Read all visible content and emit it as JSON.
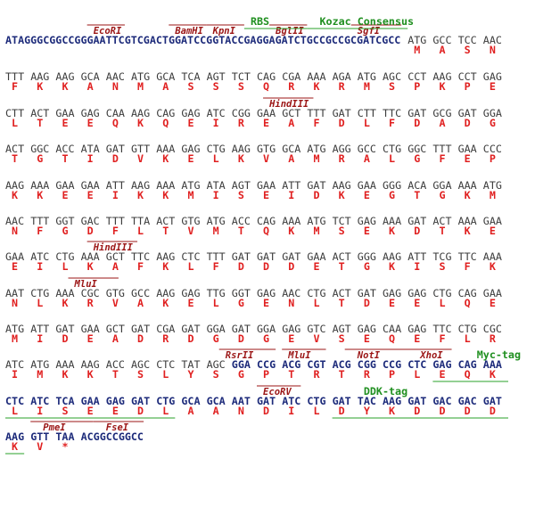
{
  "rows": [
    {
      "lead": "ATAGGGCGGCCGGGAATTCGTCGACTGGATCCGGTACCGAGGAGATCTGCCGCCGCGATCGCC",
      "codons": [
        "ATG",
        "GCC",
        "TCC",
        "AAC"
      ],
      "protein": [
        "M",
        "A",
        "S",
        "N"
      ],
      "sites": [
        "EcoRI",
        "BamHI",
        "KpnI",
        "BglII",
        "SgfI"
      ],
      "tags": [
        "RBS",
        "Kozac Consensus"
      ]
    },
    {
      "codons": [
        "TTT",
        "AAG",
        "AAG",
        "GCA",
        "AAC",
        "ATG",
        "GCA",
        "TCA",
        "AGT",
        "TCT",
        "CAG",
        "CGA",
        "AAA",
        "AGA",
        "ATG",
        "AGC",
        "CCT",
        "AAG",
        "CCT",
        "GAG"
      ],
      "protein": [
        "F",
        "K",
        "K",
        "A",
        "N",
        "M",
        "A",
        "S",
        "S",
        "S",
        "Q",
        "R",
        "K",
        "R",
        "M",
        "S",
        "P",
        "K",
        "P",
        "E"
      ]
    },
    {
      "codons": [
        "CTT",
        "ACT",
        "GAA",
        "GAG",
        "CAA",
        "AAG",
        "CAG",
        "GAG",
        "ATC",
        "CGG",
        "GAA",
        "GCT",
        "TTT",
        "GAT",
        "CTT",
        "TTC",
        "GAT",
        "GCG",
        "GAT",
        "GGA"
      ],
      "protein": [
        "L",
        "T",
        "E",
        "E",
        "Q",
        "K",
        "Q",
        "E",
        "I",
        "R",
        "E",
        "A",
        "F",
        "D",
        "L",
        "F",
        "D",
        "A",
        "D",
        "G"
      ],
      "sites": [
        "HindIII"
      ]
    },
    {
      "codons": [
        "ACT",
        "GGC",
        "ACC",
        "ATA",
        "GAT",
        "GTT",
        "AAA",
        "GAG",
        "CTG",
        "AAG",
        "GTG",
        "GCA",
        "ATG",
        "AGG",
        "GCC",
        "CTG",
        "GGC",
        "TTT",
        "GAA",
        "CCC"
      ],
      "protein": [
        "T",
        "G",
        "T",
        "I",
        "D",
        "V",
        "K",
        "E",
        "L",
        "K",
        "V",
        "A",
        "M",
        "R",
        "A",
        "L",
        "G",
        "F",
        "E",
        "P"
      ]
    },
    {
      "codons": [
        "AAG",
        "AAA",
        "GAA",
        "GAA",
        "ATT",
        "AAG",
        "AAA",
        "ATG",
        "ATA",
        "AGT",
        "GAA",
        "ATT",
        "GAT",
        "AAG",
        "GAA",
        "GGG",
        "ACA",
        "GGA",
        "AAA",
        "ATG"
      ],
      "protein": [
        "K",
        "K",
        "E",
        "E",
        "I",
        "K",
        "K",
        "M",
        "I",
        "S",
        "E",
        "I",
        "D",
        "K",
        "E",
        "G",
        "T",
        "G",
        "K",
        "M"
      ]
    },
    {
      "codons": [
        "AAC",
        "TTT",
        "GGT",
        "GAC",
        "TTT",
        "TTA",
        "ACT",
        "GTG",
        "ATG",
        "ACC",
        "CAG",
        "AAA",
        "ATG",
        "TCT",
        "GAG",
        "AAA",
        "GAT",
        "ACT",
        "AAA",
        "GAA"
      ],
      "protein": [
        "N",
        "F",
        "G",
        "D",
        "F",
        "L",
        "T",
        "V",
        "M",
        "T",
        "Q",
        "K",
        "M",
        "S",
        "E",
        "K",
        "D",
        "T",
        "K",
        "E"
      ]
    },
    {
      "codons": [
        "GAA",
        "ATC",
        "CTG",
        "AAA",
        "GCT",
        "TTC",
        "AAG",
        "CTC",
        "TTT",
        "GAT",
        "GAT",
        "GAT",
        "GAA",
        "ACT",
        "GGG",
        "AAG",
        "ATT",
        "TCG",
        "TTC",
        "AAA"
      ],
      "protein": [
        "E",
        "I",
        "L",
        "K",
        "A",
        "F",
        "K",
        "L",
        "F",
        "D",
        "D",
        "D",
        "E",
        "T",
        "G",
        "K",
        "I",
        "S",
        "F",
        "K"
      ],
      "sites": [
        "HindIII"
      ]
    },
    {
      "codons": [
        "AAT",
        "CTG",
        "AAA",
        "CGC",
        "GTG",
        "GCC",
        "AAG",
        "GAG",
        "TTG",
        "GGT",
        "GAG",
        "AAC",
        "CTG",
        "ACT",
        "GAT",
        "GAG",
        "GAG",
        "CTG",
        "CAG",
        "GAA"
      ],
      "protein": [
        "N",
        "L",
        "K",
        "R",
        "V",
        "A",
        "K",
        "E",
        "L",
        "G",
        "E",
        "N",
        "L",
        "T",
        "D",
        "E",
        "E",
        "L",
        "Q",
        "E"
      ],
      "sites": [
        "MluI"
      ]
    },
    {
      "codons": [
        "ATG",
        "ATT",
        "GAT",
        "GAA",
        "GCT",
        "GAT",
        "CGA",
        "GAT",
        "GGA",
        "GAT",
        "GGA",
        "GAG",
        "GTC",
        "AGT",
        "GAG",
        "CAA",
        "GAG",
        "TTC",
        "CTG",
        "CGC"
      ],
      "protein": [
        "M",
        "I",
        "D",
        "E",
        "A",
        "D",
        "R",
        "D",
        "G",
        "D",
        "G",
        "E",
        "V",
        "S",
        "E",
        "Q",
        "E",
        "F",
        "L",
        "R"
      ]
    },
    {
      "codons": [
        "ATC",
        "ATG",
        "AAA",
        "AAG",
        "ACC",
        "AGC",
        "CTC",
        "TAT",
        "AGC",
        "GGA",
        "CCG",
        "ACG",
        "CGT",
        "ACG",
        "CGG",
        "CCG",
        "CTC",
        "GAG",
        "CAG",
        "AAA"
      ],
      "protein": [
        "I",
        "M",
        "K",
        "K",
        "T",
        "S",
        "L",
        "Y",
        "S",
        "G",
        "P",
        "T",
        "R",
        "T",
        "R",
        "P",
        "L",
        "E",
        "Q",
        "K"
      ],
      "sites": [
        "RsrII",
        "MluI",
        "NotI",
        "XhoI"
      ],
      "tags": [
        "Myc-tag"
      ]
    },
    {
      "codons": [
        "CTC",
        "ATC",
        "TCA",
        "GAA",
        "GAG",
        "GAT",
        "CTG",
        "GCA",
        "GCA",
        "AAT",
        "GAT",
        "ATC",
        "CTG",
        "GAT",
        "TAC",
        "AAG",
        "GAT",
        "GAC",
        "GAC",
        "GAT"
      ],
      "protein": [
        "L",
        "I",
        "S",
        "E",
        "E",
        "D",
        "L",
        "A",
        "A",
        "N",
        "D",
        "I",
        "L",
        "D",
        "Y",
        "K",
        "D",
        "D",
        "D",
        "D"
      ],
      "sites": [
        "EcoRV"
      ],
      "tags": [
        "DDK-tag"
      ]
    },
    {
      "codons": [
        "AAG",
        "GTT",
        "TAA"
      ],
      "trail": "ACGGCCGGCC",
      "protein": [
        "K",
        "V",
        "*"
      ],
      "sites": [
        "PmeI",
        "FseI"
      ]
    }
  ]
}
